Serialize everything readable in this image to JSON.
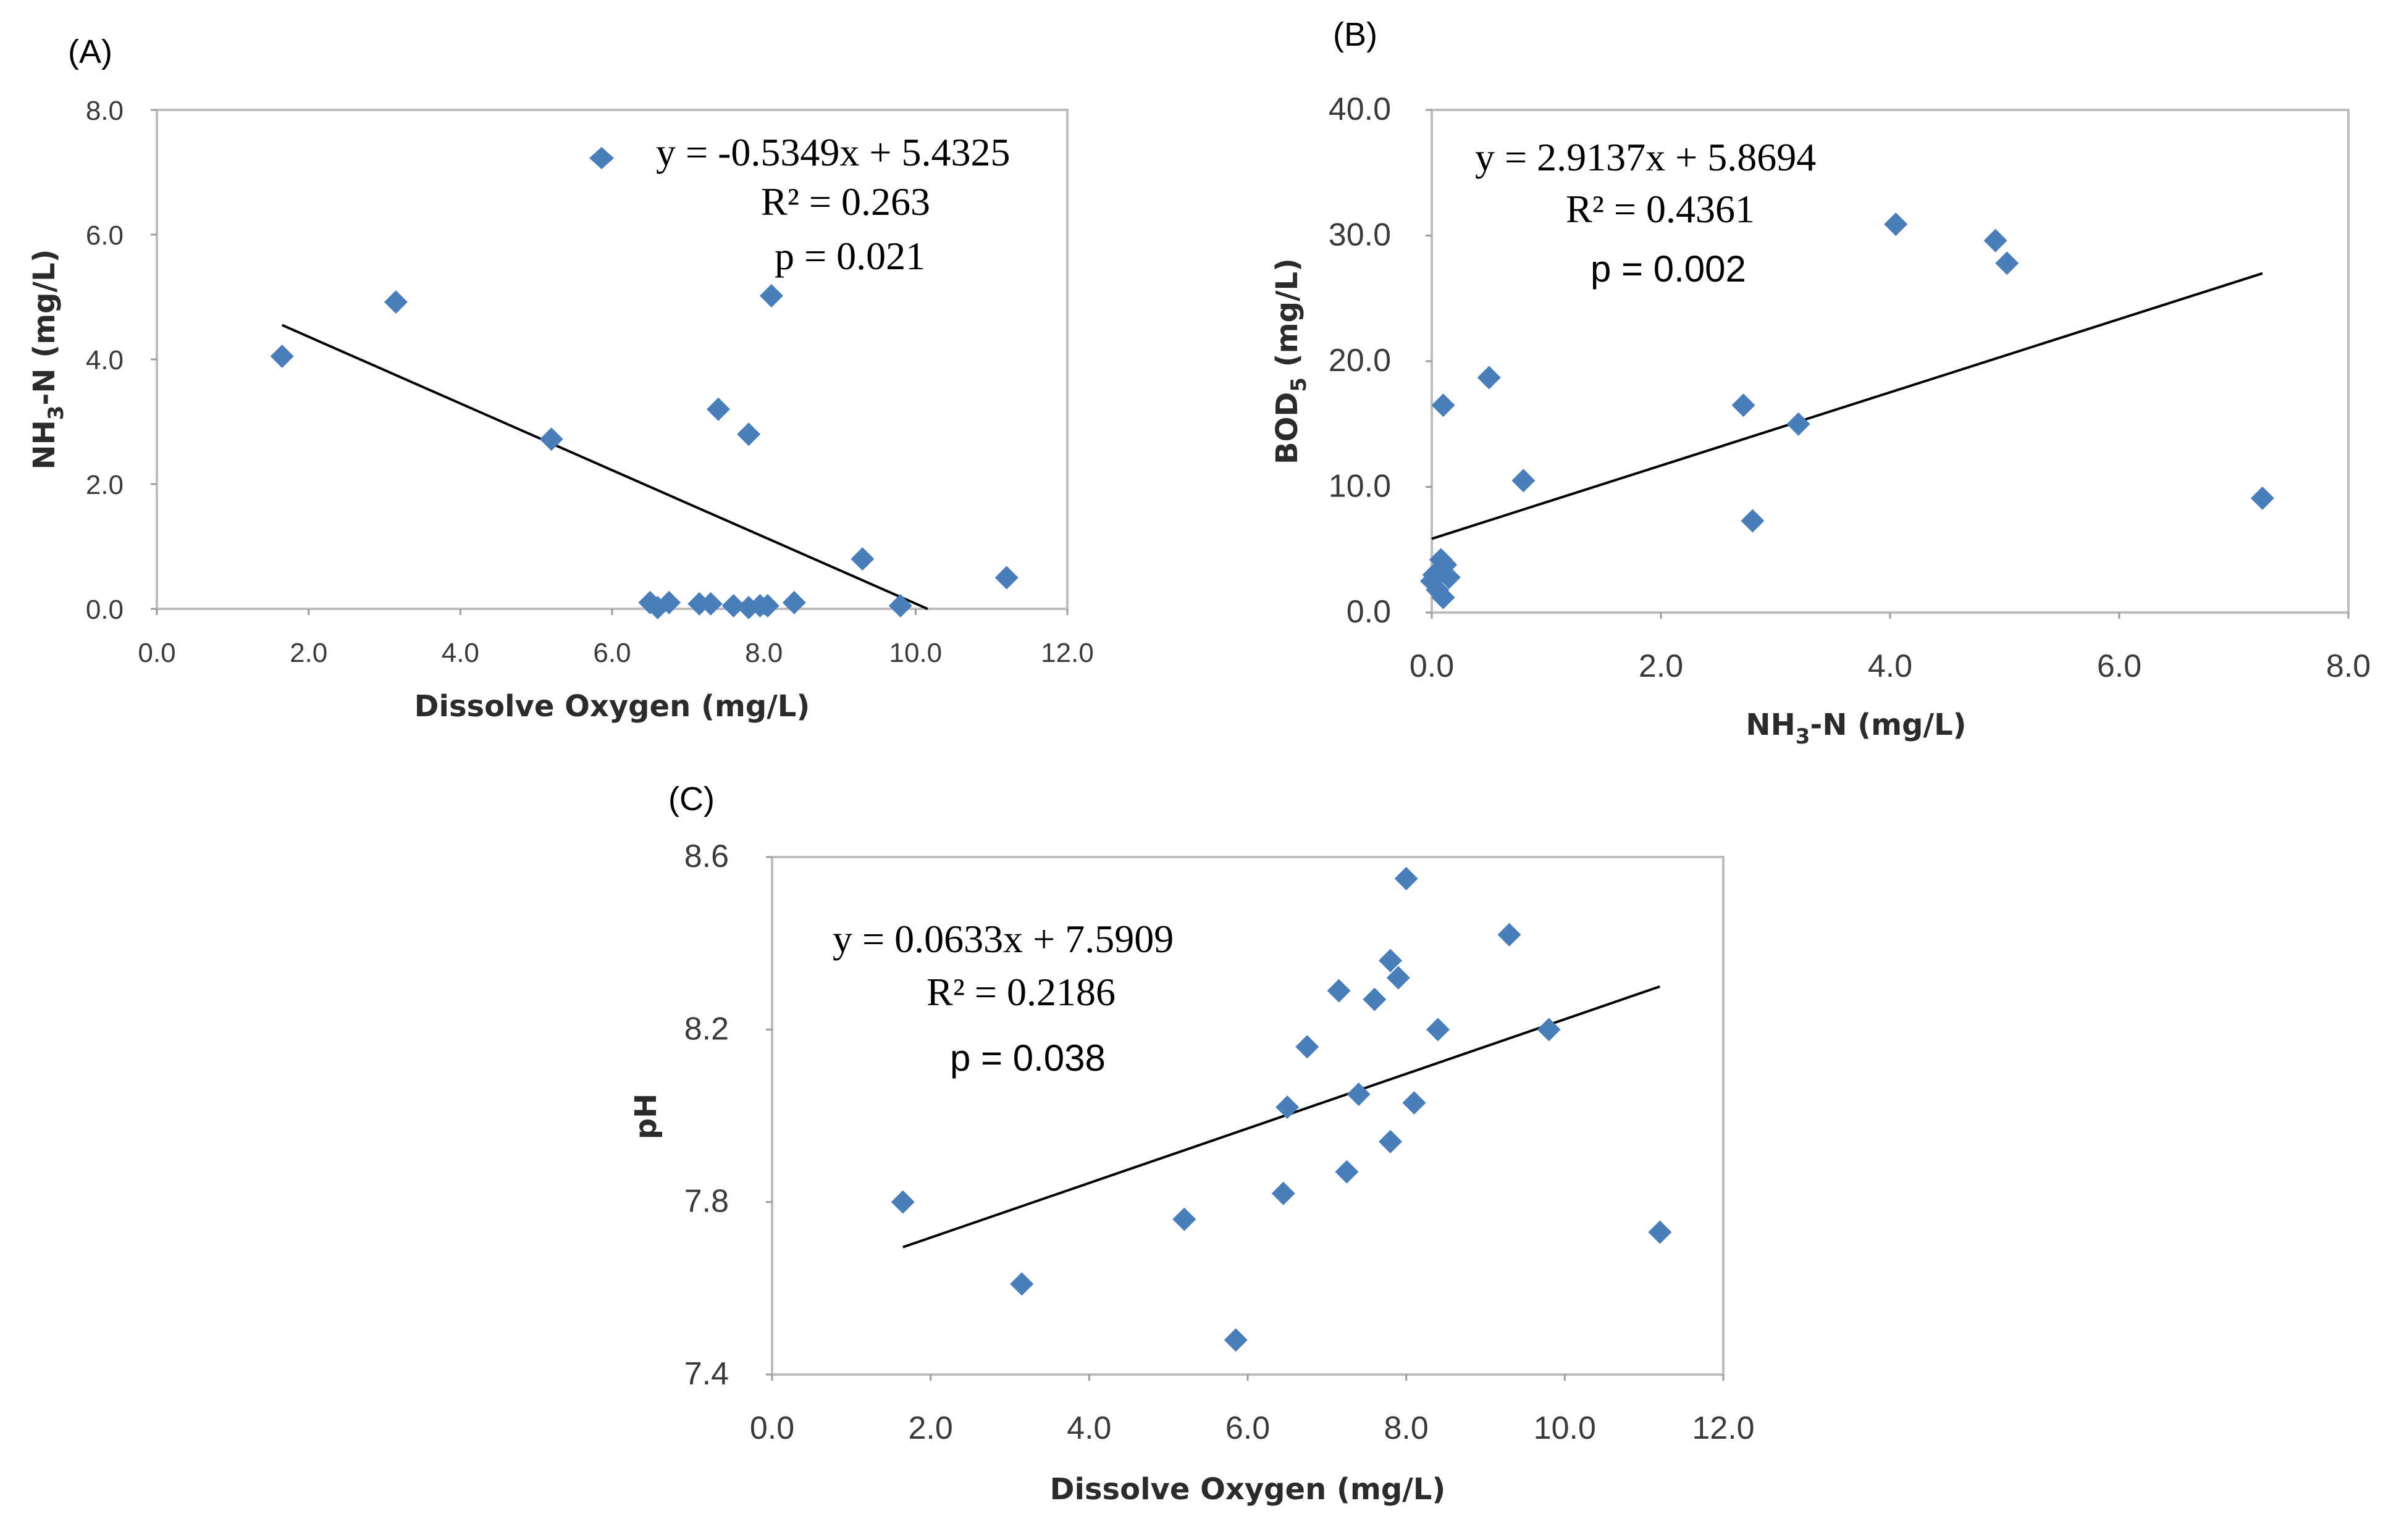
{
  "chart_data": [
    {
      "type": "scatter",
      "panel": "(A)",
      "xlabel": "Dissolve Oxygen (mg/L)",
      "ylabel": "NH3-N (mg/L)",
      "xlim": [
        0,
        12
      ],
      "ylim": [
        0,
        8
      ],
      "x_ticks": [
        "0.0",
        "2.0",
        "4.0",
        "6.0",
        "8.0",
        "10.0",
        "12.0"
      ],
      "y_ticks": [
        "0.0",
        "2.0",
        "4.0",
        "6.0",
        "8.0"
      ],
      "x_tick_values": [
        0,
        2,
        4,
        6,
        8,
        10,
        12
      ],
      "y_tick_values": [
        0,
        2,
        4,
        6,
        8
      ],
      "points": [
        {
          "x": 1.65,
          "y": 4.05
        },
        {
          "x": 3.15,
          "y": 4.92
        },
        {
          "x": 5.2,
          "y": 2.72
        },
        {
          "x": 6.5,
          "y": 0.1
        },
        {
          "x": 6.6,
          "y": 0.02
        },
        {
          "x": 6.75,
          "y": 0.1
        },
        {
          "x": 7.15,
          "y": 0.08
        },
        {
          "x": 7.3,
          "y": 0.08
        },
        {
          "x": 7.4,
          "y": 3.2
        },
        {
          "x": 7.6,
          "y": 0.05
        },
        {
          "x": 7.8,
          "y": 2.8
        },
        {
          "x": 7.8,
          "y": 0.02
        },
        {
          "x": 7.95,
          "y": 0.05
        },
        {
          "x": 8.05,
          "y": 0.05
        },
        {
          "x": 8.1,
          "y": 5.02
        },
        {
          "x": 8.4,
          "y": 0.1
        },
        {
          "x": 9.3,
          "y": 0.8
        },
        {
          "x": 9.8,
          "y": 0.05
        },
        {
          "x": 11.2,
          "y": 0.5
        }
      ],
      "trendline": {
        "slope": -0.5349,
        "intercept": 5.4325,
        "x_range": [
          1.65,
          10.16
        ]
      },
      "annotations": [
        "y = -0.5349x + 5.4325",
        "R² = 0.263",
        "p = 0.021"
      ],
      "legend_marker": true
    },
    {
      "type": "scatter",
      "panel": "(B)",
      "xlabel": "NH3-N (mg/L)",
      "ylabel": "BOD5 (mg/L)",
      "xlim": [
        0,
        8
      ],
      "ylim": [
        0,
        40
      ],
      "x_ticks": [
        "0.0",
        "2.0",
        "4.0",
        "6.0",
        "8.0"
      ],
      "y_ticks": [
        "0.0",
        "10.0",
        "20.0",
        "30.0",
        "40.0"
      ],
      "x_tick_values": [
        0,
        2,
        4,
        6,
        8
      ],
      "y_tick_values": [
        0,
        10,
        20,
        30,
        40
      ],
      "points": [
        {
          "x": 0.0,
          "y": 2.5
        },
        {
          "x": 0.02,
          "y": 3.0
        },
        {
          "x": 0.05,
          "y": 1.8
        },
        {
          "x": 0.08,
          "y": 4.2
        },
        {
          "x": 0.1,
          "y": 16.5
        },
        {
          "x": 0.1,
          "y": 1.2
        },
        {
          "x": 0.12,
          "y": 3.8
        },
        {
          "x": 0.15,
          "y": 2.8
        },
        {
          "x": 0.5,
          "y": 18.7
        },
        {
          "x": 0.8,
          "y": 10.5
        },
        {
          "x": 2.72,
          "y": 16.5
        },
        {
          "x": 2.8,
          "y": 7.3
        },
        {
          "x": 3.2,
          "y": 15.0
        },
        {
          "x": 4.05,
          "y": 30.9
        },
        {
          "x": 4.92,
          "y": 29.6
        },
        {
          "x": 5.02,
          "y": 27.8
        },
        {
          "x": 7.25,
          "y": 9.1
        }
      ],
      "trendline": {
        "slope": 2.9137,
        "intercept": 5.8694,
        "x_range": [
          0.0,
          7.25
        ]
      },
      "annotations": [
        "y = 2.9137x + 5.8694",
        "R² = 0.4361",
        "p = 0.002"
      ]
    },
    {
      "type": "scatter",
      "panel": "(C)",
      "xlabel": "Dissolve Oxygen (mg/L)",
      "ylabel": "pH",
      "xlim": [
        0,
        12
      ],
      "ylim": [
        7.4,
        8.6
      ],
      "x_ticks": [
        "0.0",
        "2.0",
        "4.0",
        "6.0",
        "8.0",
        "10.0",
        "12.0"
      ],
      "y_ticks": [
        "7.4",
        "7.8",
        "8.2",
        "8.6"
      ],
      "x_tick_values": [
        0,
        2,
        4,
        6,
        8,
        10,
        12
      ],
      "y_tick_values": [
        7.4,
        7.8,
        8.2,
        8.6
      ],
      "points": [
        {
          "x": 1.65,
          "y": 7.8
        },
        {
          "x": 3.15,
          "y": 7.61
        },
        {
          "x": 5.2,
          "y": 7.76
        },
        {
          "x": 5.85,
          "y": 7.48
        },
        {
          "x": 6.45,
          "y": 7.82
        },
        {
          "x": 6.5,
          "y": 8.02
        },
        {
          "x": 6.75,
          "y": 8.16
        },
        {
          "x": 7.15,
          "y": 8.29
        },
        {
          "x": 7.25,
          "y": 7.87
        },
        {
          "x": 7.4,
          "y": 8.05
        },
        {
          "x": 7.6,
          "y": 8.27
        },
        {
          "x": 7.8,
          "y": 8.36
        },
        {
          "x": 7.8,
          "y": 7.94
        },
        {
          "x": 7.9,
          "y": 8.32
        },
        {
          "x": 8.0,
          "y": 8.55
        },
        {
          "x": 8.1,
          "y": 8.03
        },
        {
          "x": 8.4,
          "y": 8.2
        },
        {
          "x": 9.3,
          "y": 8.42
        },
        {
          "x": 9.8,
          "y": 8.2
        },
        {
          "x": 11.2,
          "y": 7.73
        }
      ],
      "trendline": {
        "slope": 0.0633,
        "intercept": 7.5909,
        "x_range": [
          1.65,
          11.2
        ]
      },
      "annotations": [
        "y = 0.0633x + 7.5909",
        "R² = 0.2186",
        "p = 0.038"
      ]
    }
  ],
  "text": {
    "a_ylabel_main": "NH",
    "a_ylabel_sub": "3",
    "a_ylabel_rest": "-N (mg/L)",
    "b_ylabel_main": "BOD",
    "b_ylabel_sub": "5",
    "b_ylabel_rest": " (mg/L)",
    "b_xlabel_main": "NH",
    "b_xlabel_sub": "3",
    "b_xlabel_rest": "-N (mg/L)"
  },
  "colors": {
    "marker": "#4a7ebb",
    "trendline": "#000000",
    "frame": "#bdbdbd"
  }
}
